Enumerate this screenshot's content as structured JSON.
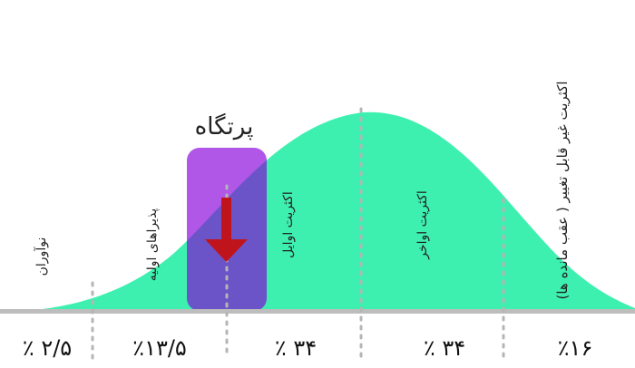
{
  "title": "پرتگاه",
  "segments": [
    {
      "name": "نوآوران",
      "percent": "٪ ۲/۵"
    },
    {
      "name": "پذیراهای اولیه",
      "percent": "٪۱۳/۵"
    },
    {
      "name": "اکثریت اوایل",
      "percent": "٪ ۳۴"
    },
    {
      "name": "اکثریت اواخر",
      "percent": "٪ ۳۴"
    },
    {
      "name": "اکثریت غیر قابل تغییر ( عقب مانده ها)",
      "percent": "٪۱۶"
    }
  ],
  "colors": {
    "curve": "#3ef0b0",
    "chasm_light": "#b057e8",
    "chasm_dark": "#6b54c8",
    "arrow": "#c0141c",
    "divider": "#b5b5b5",
    "baseline": "#bdbdbd"
  }
}
